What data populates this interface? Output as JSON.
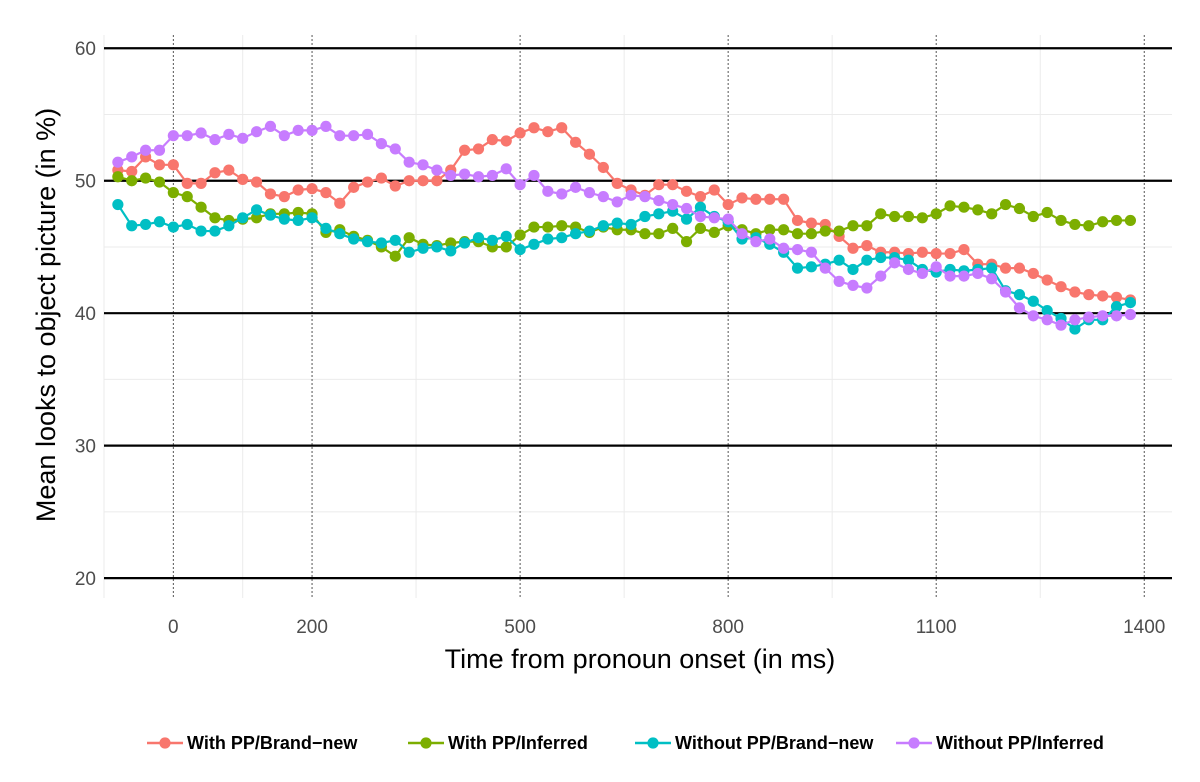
{
  "chart_data": {
    "type": "line",
    "xlabel": "Time from pronoun onset (in ms)",
    "ylabel": "Mean looks to object picture (in %)",
    "xlim": [
      -100,
      1440
    ],
    "ylim": [
      18.5,
      61
    ],
    "x_major_ticks": [
      0,
      200,
      500,
      800,
      1100,
      1400
    ],
    "x_tick_labels": [
      "0",
      "200",
      "500",
      "800",
      "1100",
      "1400"
    ],
    "x_minor_ticks": [
      -100,
      100,
      350,
      650,
      950,
      1250
    ],
    "x_dotted_lines": [
      0,
      200,
      500,
      800,
      1100,
      1400
    ],
    "y_major_ticks": [
      20,
      30,
      40,
      50,
      60
    ],
    "y_tick_labels": [
      "20",
      "30",
      "40",
      "50",
      "60"
    ],
    "y_minor_ticks": [
      25,
      35,
      45,
      55
    ],
    "grid": true,
    "legend_position": "bottom",
    "x": [
      -80,
      -60,
      -40,
      -20,
      0,
      20,
      40,
      60,
      80,
      100,
      120,
      140,
      160,
      180,
      200,
      220,
      240,
      260,
      280,
      300,
      320,
      340,
      360,
      380,
      400,
      420,
      440,
      460,
      480,
      500,
      520,
      540,
      560,
      580,
      600,
      620,
      640,
      660,
      680,
      700,
      720,
      740,
      760,
      780,
      800,
      820,
      840,
      860,
      880,
      900,
      920,
      940,
      960,
      980,
      1000,
      1020,
      1040,
      1060,
      1080,
      1100,
      1120,
      1140,
      1160,
      1180,
      1200,
      1220,
      1240,
      1260,
      1280,
      1300,
      1320,
      1340,
      1360,
      1380
    ],
    "series": [
      {
        "name": "With PP/Brand−new",
        "color": "#F8766D",
        "values": [
          50.8,
          50.7,
          51.8,
          51.2,
          51.2,
          49.8,
          49.8,
          50.6,
          50.8,
          50.1,
          49.9,
          49.0,
          48.8,
          49.3,
          49.4,
          49.1,
          48.3,
          49.5,
          49.9,
          50.2,
          49.6,
          50.0,
          50.0,
          50.0,
          50.8,
          52.3,
          52.4,
          53.1,
          53.0,
          53.6,
          54.0,
          53.7,
          54.0,
          52.9,
          52.0,
          51.0,
          49.8,
          49.3,
          48.9,
          49.7,
          49.7,
          49.2,
          48.8,
          49.3,
          48.2,
          48.7,
          48.6,
          48.6,
          48.6,
          47.0,
          46.8,
          46.7,
          45.8,
          44.9,
          45.1,
          44.6,
          44.6,
          44.5,
          44.6,
          44.5,
          44.5,
          44.8,
          43.7,
          43.7,
          43.4,
          43.4,
          43.0,
          42.5,
          42.0,
          41.6,
          41.4,
          41.3,
          41.2,
          41.0
        ]
      },
      {
        "name": "With PP/Inferred",
        "color": "#7CAE00",
        "values": [
          50.3,
          50.0,
          50.2,
          49.9,
          49.1,
          48.8,
          48.0,
          47.2,
          47.0,
          47.1,
          47.2,
          47.5,
          47.5,
          47.6,
          47.5,
          46.1,
          46.3,
          45.8,
          45.5,
          45.0,
          44.3,
          45.7,
          45.2,
          45.1,
          45.3,
          45.4,
          45.4,
          45.0,
          45.0,
          45.9,
          46.5,
          46.5,
          46.6,
          46.5,
          46.1,
          46.5,
          46.3,
          46.3,
          46.0,
          46.0,
          46.4,
          45.4,
          46.4,
          46.1,
          46.6,
          46.3,
          46.0,
          46.3,
          46.3,
          46.0,
          46.0,
          46.2,
          46.2,
          46.6,
          46.6,
          47.5,
          47.3,
          47.3,
          47.2,
          47.5,
          48.1,
          48.0,
          47.8,
          47.5,
          48.2,
          47.9,
          47.3,
          47.6,
          47.0,
          46.7,
          46.6,
          46.9,
          47.0,
          47.0
        ]
      },
      {
        "name": "Without PP/Brand−new",
        "color": "#00BFC4",
        "values": [
          48.2,
          46.6,
          46.7,
          46.9,
          46.5,
          46.7,
          46.2,
          46.2,
          46.6,
          47.2,
          47.8,
          47.4,
          47.1,
          47.0,
          47.2,
          46.4,
          46.0,
          45.6,
          45.4,
          45.3,
          45.5,
          44.6,
          44.9,
          45.0,
          44.7,
          45.3,
          45.7,
          45.5,
          45.8,
          44.8,
          45.2,
          45.6,
          45.7,
          46.0,
          46.2,
          46.6,
          46.8,
          46.7,
          47.3,
          47.5,
          47.7,
          47.1,
          48.0,
          47.3,
          46.9,
          45.6,
          45.7,
          45.2,
          44.6,
          43.4,
          43.5,
          43.7,
          44.0,
          43.3,
          44.0,
          44.2,
          44.2,
          44.0,
          43.3,
          43.1,
          43.3,
          43.2,
          43.3,
          43.4,
          41.7,
          41.4,
          40.9,
          40.2,
          39.6,
          38.8,
          39.5,
          39.5,
          40.5,
          40.8
        ]
      },
      {
        "name": "Without PP/Inferred",
        "color": "#C77CFF",
        "values": [
          51.4,
          51.8,
          52.3,
          52.3,
          53.4,
          53.4,
          53.6,
          53.1,
          53.5,
          53.2,
          53.7,
          54.1,
          53.4,
          53.8,
          53.8,
          54.1,
          53.4,
          53.4,
          53.5,
          52.8,
          52.4,
          51.4,
          51.2,
          50.8,
          50.4,
          50.5,
          50.3,
          50.4,
          50.9,
          49.7,
          50.4,
          49.2,
          49.0,
          49.5,
          49.1,
          48.8,
          48.4,
          48.9,
          48.8,
          48.5,
          48.2,
          47.9,
          47.3,
          47.2,
          47.1,
          46.0,
          45.4,
          45.6,
          44.9,
          44.8,
          44.6,
          43.4,
          42.4,
          42.1,
          41.9,
          42.8,
          43.8,
          43.3,
          43.0,
          43.5,
          42.8,
          42.8,
          43.0,
          42.6,
          41.6,
          40.4,
          39.8,
          39.5,
          39.1,
          39.5,
          39.7,
          39.8,
          39.8,
          39.9
        ]
      }
    ]
  }
}
